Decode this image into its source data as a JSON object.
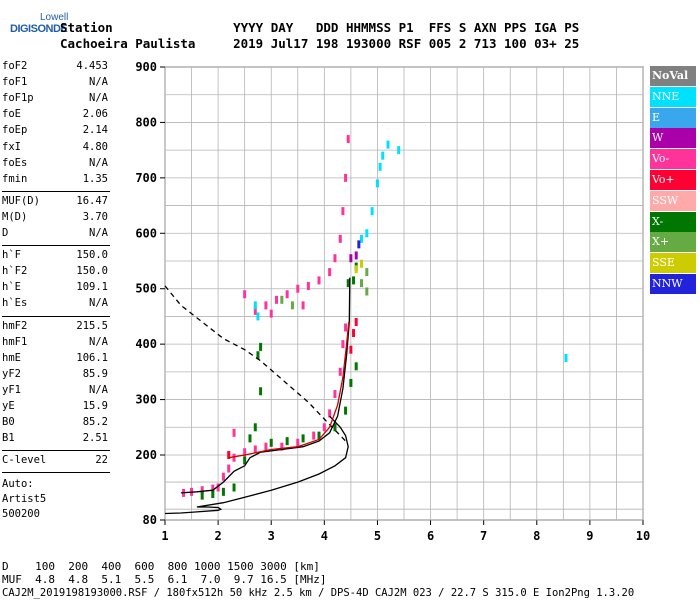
{
  "logo": {
    "line1": "Lowell",
    "line2": "DIGISONDE"
  },
  "header": {
    "line1": "Station                YYYY DAY   DDD HHMMSS P1  FFS S AXN PPS IGA PS",
    "line2": "Cachoeira Paulista     2019 Jul17 198 193000 RSF 005 2 713 100 03+ 25"
  },
  "params": [
    {
      "k": "foF2",
      "v": "4.453"
    },
    {
      "k": "foF1",
      "v": "N/A"
    },
    {
      "k": "foF1p",
      "v": "N/A"
    },
    {
      "k": "foE",
      "v": "2.06"
    },
    {
      "k": "foEp",
      "v": "2.14"
    },
    {
      "k": "fxI",
      "v": "4.80"
    },
    {
      "k": "foEs",
      "v": "N/A"
    },
    {
      "k": "fmin",
      "v": "1.35"
    },
    {
      "k": "MUF(D)",
      "v": "16.47"
    },
    {
      "k": "M(D)",
      "v": "3.70"
    },
    {
      "k": "D",
      "v": "N/A"
    },
    {
      "k": "h`F",
      "v": "150.0"
    },
    {
      "k": "h`F2",
      "v": "150.0"
    },
    {
      "k": "h`E",
      "v": "109.1"
    },
    {
      "k": "h`Es",
      "v": "N/A"
    },
    {
      "k": "hmF2",
      "v": "215.5"
    },
    {
      "k": "hmF1",
      "v": "N/A"
    },
    {
      "k": "hmE",
      "v": "106.1"
    },
    {
      "k": "yF2",
      "v": "85.9"
    },
    {
      "k": "yF1",
      "v": "N/A"
    },
    {
      "k": "yE",
      "v": "15.9"
    },
    {
      "k": "B0",
      "v": "85.2"
    },
    {
      "k": "B1",
      "v": "2.51"
    },
    {
      "k": "C-level",
      "v": "22"
    }
  ],
  "auto": {
    "l1": "Auto:",
    "l2": "Artist5",
    "l3": "500200"
  },
  "legend": [
    {
      "label": "NoVal",
      "color": "#808080"
    },
    {
      "label": "NNE",
      "color": "#00e0ff"
    },
    {
      "label": "E",
      "color": "#3aa6ee"
    },
    {
      "label": "W",
      "color": "#aa00aa"
    },
    {
      "label": "Vo-",
      "color": "#ff3399"
    },
    {
      "label": "Vo+",
      "color": "#ff0033"
    },
    {
      "label": "SSW",
      "color": "#ffaaaa"
    },
    {
      "label": "X-",
      "color": "#007700"
    },
    {
      "label": "X+",
      "color": "#66aa44"
    },
    {
      "label": "SSE",
      "color": "#cccc00"
    },
    {
      "label": "NNW",
      "color": "#2222dd"
    }
  ],
  "footer": {
    "line1": "D    100  200  400  600  800 1000 1500 3000 [km]",
    "line2": "MUF  4.8  4.8  5.1  5.5  6.1  7.0  9.7 16.5 [MHz]",
    "bottom": "CAJ2M_2019198193000.RSF / 180fx512h 50 kHz 2.5 km / DPS-4D CAJ2M 023 / 22.7 S 315.0 E Ion2Png 1.3.20"
  },
  "chart_data": {
    "type": "scatter",
    "xlim": [
      1,
      10
    ],
    "ylim": [
      80,
      900
    ],
    "xticks": [
      "1",
      "2",
      "3",
      "4",
      "5",
      "6",
      "7",
      "8",
      "9",
      "10"
    ],
    "yticks": [
      "80",
      "200",
      "300",
      "400",
      "500",
      "600",
      "700",
      "800",
      "900"
    ],
    "grid": true,
    "series": [
      {
        "color": "#ff3399",
        "points": [
          [
            1.35,
            130
          ],
          [
            1.5,
            132
          ],
          [
            1.7,
            135
          ],
          [
            1.9,
            138
          ],
          [
            2.0,
            140
          ],
          [
            2.1,
            160
          ],
          [
            2.2,
            175
          ],
          [
            2.3,
            195
          ],
          [
            2.5,
            205
          ],
          [
            2.7,
            210
          ],
          [
            2.9,
            215
          ],
          [
            3.2,
            215
          ],
          [
            3.5,
            222
          ],
          [
            3.8,
            235
          ],
          [
            4.0,
            250
          ],
          [
            4.1,
            275
          ],
          [
            4.2,
            310
          ],
          [
            4.3,
            350
          ],
          [
            4.35,
            400
          ],
          [
            4.4,
            430
          ],
          [
            2.7,
            460
          ],
          [
            2.9,
            470
          ],
          [
            3.1,
            480
          ],
          [
            3.3,
            490
          ],
          [
            3.5,
            500
          ],
          [
            3.7,
            505
          ],
          [
            3.9,
            515
          ],
          [
            4.1,
            530
          ],
          [
            4.2,
            555
          ],
          [
            4.3,
            590
          ],
          [
            4.35,
            640
          ],
          [
            4.4,
            700
          ],
          [
            4.45,
            770
          ],
          [
            2.5,
            490
          ],
          [
            3.0,
            455
          ],
          [
            3.6,
            470
          ],
          [
            2.3,
            240
          ]
        ]
      },
      {
        "color": "#007700",
        "points": [
          [
            1.7,
            125
          ],
          [
            1.9,
            128
          ],
          [
            2.1,
            132
          ],
          [
            2.3,
            140
          ],
          [
            2.5,
            190
          ],
          [
            2.6,
            230
          ],
          [
            2.7,
            250
          ],
          [
            3.0,
            222
          ],
          [
            3.3,
            225
          ],
          [
            3.6,
            230
          ],
          [
            3.9,
            235
          ],
          [
            4.2,
            250
          ],
          [
            4.4,
            280
          ],
          [
            4.5,
            330
          ],
          [
            4.6,
            360
          ],
          [
            2.75,
            380
          ],
          [
            2.8,
            395
          ],
          [
            2.8,
            315
          ],
          [
            4.45,
            510
          ],
          [
            4.55,
            515
          ],
          [
            4.6,
            540
          ]
        ]
      },
      {
        "color": "#00e0ff",
        "points": [
          [
            2.7,
            470
          ],
          [
            2.75,
            450
          ],
          [
            4.8,
            600
          ],
          [
            4.9,
            640
          ],
          [
            5.0,
            690
          ],
          [
            5.05,
            720
          ],
          [
            5.1,
            740
          ],
          [
            5.2,
            760
          ],
          [
            5.4,
            750
          ],
          [
            8.55,
            375
          ],
          [
            4.7,
            590
          ]
        ]
      },
      {
        "color": "#ff0033",
        "points": [
          [
            4.5,
            390
          ],
          [
            4.55,
            420
          ],
          [
            4.6,
            440
          ],
          [
            2.2,
            200
          ]
        ]
      },
      {
        "color": "#66aa44",
        "points": [
          [
            3.2,
            480
          ],
          [
            3.4,
            470
          ],
          [
            4.7,
            510
          ],
          [
            4.8,
            495
          ],
          [
            4.8,
            530
          ]
        ]
      },
      {
        "color": "#aa00aa",
        "points": [
          [
            4.5,
            555
          ],
          [
            4.6,
            560
          ]
        ]
      },
      {
        "color": "#2222dd",
        "points": [
          [
            4.65,
            580
          ]
        ]
      },
      {
        "color": "#cccc00",
        "points": [
          [
            4.6,
            535
          ],
          [
            4.7,
            545
          ]
        ]
      }
    ],
    "curves": [
      {
        "style": "solid",
        "color": "#000",
        "points": [
          [
            1.0,
            92
          ],
          [
            1.3,
            93
          ],
          [
            1.6,
            95
          ],
          [
            2.0,
            98
          ],
          [
            2.05,
            100
          ],
          [
            2.0,
            103
          ],
          [
            1.8,
            104
          ],
          [
            1.6,
            104
          ],
          [
            2.1,
            112
          ],
          [
            2.5,
            122
          ],
          [
            3.0,
            135
          ],
          [
            3.5,
            150
          ],
          [
            3.9,
            165
          ],
          [
            4.2,
            180
          ],
          [
            4.4,
            195
          ],
          [
            4.45,
            215
          ],
          [
            4.4,
            235
          ],
          [
            4.3,
            250
          ],
          [
            4.1,
            270
          ]
        ]
      },
      {
        "style": "dashed",
        "color": "#000",
        "points": [
          [
            1.0,
            505
          ],
          [
            1.3,
            470
          ],
          [
            1.7,
            440
          ],
          [
            2.1,
            410
          ],
          [
            2.5,
            390
          ],
          [
            2.8,
            370
          ],
          [
            3.1,
            345
          ],
          [
            3.4,
            320
          ],
          [
            3.7,
            295
          ],
          [
            4.0,
            265
          ],
          [
            4.2,
            245
          ],
          [
            4.4,
            225
          ]
        ]
      },
      {
        "style": "solid",
        "color": "#000",
        "points": [
          [
            1.3,
            130
          ],
          [
            1.6,
            132
          ],
          [
            1.9,
            135
          ],
          [
            2.1,
            150
          ],
          [
            2.3,
            170
          ],
          [
            2.5,
            180
          ],
          [
            2.6,
            195
          ],
          [
            2.8,
            205
          ],
          [
            3.2,
            210
          ],
          [
            3.6,
            215
          ],
          [
            3.9,
            225
          ],
          [
            4.1,
            240
          ],
          [
            4.25,
            270
          ],
          [
            4.35,
            320
          ],
          [
            4.42,
            380
          ],
          [
            4.47,
            440
          ],
          [
            4.48,
            520
          ]
        ]
      },
      {
        "style": "solid",
        "color": "#cc0000",
        "points": [
          [
            2.2,
            195
          ],
          [
            2.5,
            200
          ],
          [
            3.0,
            210
          ],
          [
            3.5,
            215
          ],
          [
            3.9,
            228
          ],
          [
            4.1,
            250
          ],
          [
            4.25,
            290
          ],
          [
            4.35,
            340
          ],
          [
            4.42,
            400
          ],
          [
            4.46,
            440
          ]
        ]
      }
    ]
  }
}
